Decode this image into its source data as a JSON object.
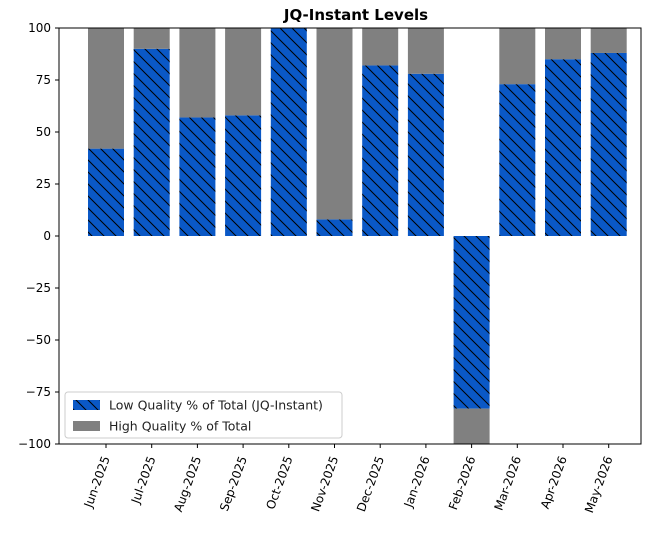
{
  "chart_data": {
    "type": "bar",
    "title": "JQ-Instant Levels",
    "xlabel": "",
    "ylabel": "",
    "categories": [
      "Jun-2025",
      "Jul-2025",
      "Aug-2025",
      "Sep-2025",
      "Oct-2025",
      "Nov-2025",
      "Dec-2025",
      "Jan-2026",
      "Feb-2026",
      "Mar-2026",
      "Apr-2026",
      "May-2026"
    ],
    "series": [
      {
        "name": "Low Quality % of Total (JQ-Instant)",
        "values": [
          42,
          90,
          57,
          58,
          100,
          8,
          82,
          78,
          -83,
          73,
          85,
          88
        ]
      },
      {
        "name": "High Quality % of Total",
        "values": [
          58,
          10,
          43,
          42,
          0,
          92,
          18,
          22,
          -17,
          27,
          15,
          12
        ]
      }
    ],
    "stacked": true,
    "ylim": [
      -100,
      100
    ],
    "yticks": [
      -100,
      -75,
      -50,
      -25,
      0,
      25,
      50,
      75,
      100
    ],
    "ytick_labels": [
      "−100",
      "−75",
      "−50",
      "−25",
      "0",
      "25",
      "50",
      "75",
      "100"
    ],
    "legend_position": "lower-left",
    "colors": {
      "low": "#0a58c6",
      "high": "#808080",
      "hatch": "#000000"
    },
    "grid": false
  }
}
